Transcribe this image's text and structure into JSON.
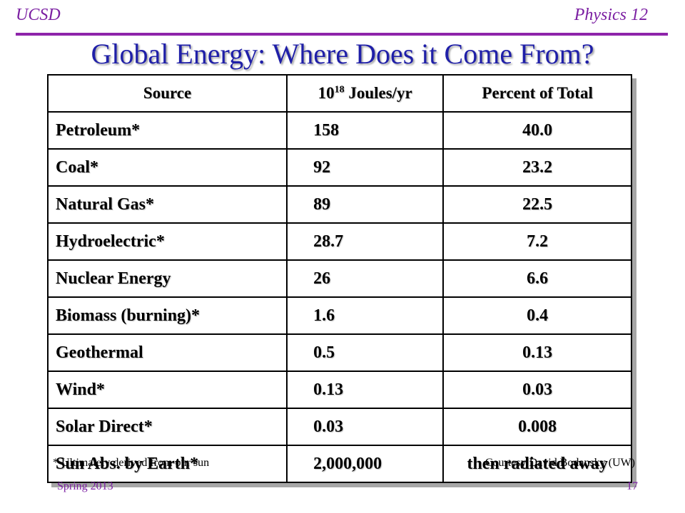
{
  "header": {
    "left": "UCSD",
    "right": "Physics 12"
  },
  "title": "Global Energy: Where Does it Come From?",
  "table": {
    "headers": {
      "source": "Source",
      "energy_base": "10",
      "energy_exp": "18",
      "energy_unit": " Joules/yr",
      "percent": "Percent of Total"
    },
    "rows": [
      {
        "source": "Petroleum*",
        "energy": "158",
        "percent": "40.0"
      },
      {
        "source": "Coal*",
        "energy": "92",
        "percent": "23.2"
      },
      {
        "source": "Natural Gas*",
        "energy": "89",
        "percent": "22.5"
      },
      {
        "source": "Hydroelectric*",
        "energy": "28.7",
        "percent": "7.2"
      },
      {
        "source": "Nuclear Energy",
        "energy": "26",
        "percent": "6.6"
      },
      {
        "source": "Biomass (burning)*",
        "energy": "1.6",
        "percent": "0.4"
      },
      {
        "source": "Geothermal",
        "energy": "0.5",
        "percent": "0.13"
      },
      {
        "source": "Wind*",
        "energy": "0.13",
        "percent": "0.03"
      },
      {
        "source": "Solar Direct*",
        "energy": "0.03",
        "percent": "0.008"
      },
      {
        "source": "Sun Abs. by Earth*",
        "energy": "2,000,000",
        "percent": "then radiated away"
      }
    ]
  },
  "footnotes": {
    "left": "* Ultimately derived from our sun",
    "right": "Courtesy David Bodansky (UW)"
  },
  "footer": {
    "date": "Spring 2013",
    "page": "17"
  },
  "colors": {
    "header": "#7b1fa2",
    "title": "#1f1fa8",
    "rule": "#8e24aa"
  }
}
